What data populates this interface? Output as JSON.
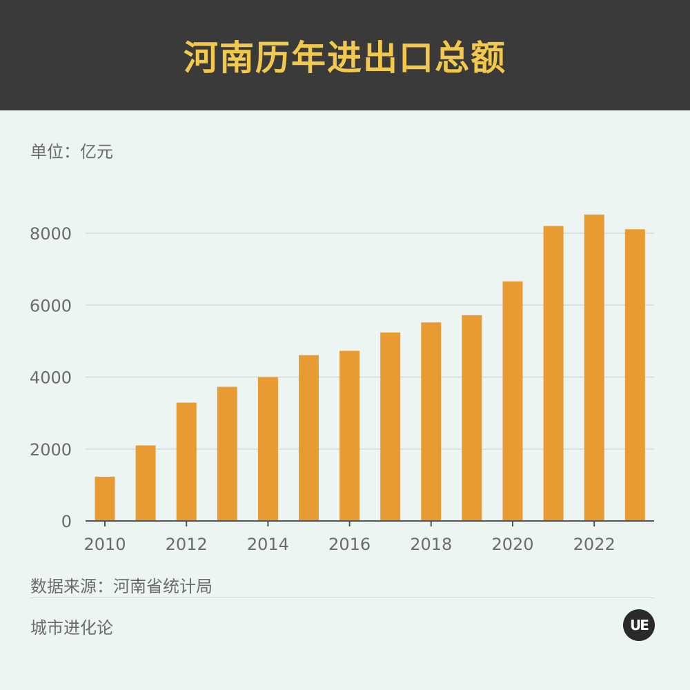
{
  "header": {
    "title": "河南历年进出口总额",
    "bg_color": "#3a3a3a",
    "title_color": "#f2c94c"
  },
  "unit_label": "单位：亿元",
  "source_label": "数据来源：河南省统计局",
  "brand_label": "城市进化论",
  "logo_text": "UE",
  "colors": {
    "bar": "#e89b33",
    "background": "#edf5f3",
    "grid": "#d4dcda",
    "axis": "#555555",
    "text": "#6b6b6b"
  },
  "chart_data": {
    "type": "bar",
    "title": "",
    "xlabel": "",
    "ylabel": "",
    "ylim": [
      0,
      9000
    ],
    "yticks": [
      0,
      2000,
      4000,
      6000,
      8000
    ],
    "x": [
      2010,
      2011,
      2012,
      2013,
      2014,
      2015,
      2016,
      2017,
      2018,
      2019,
      2020,
      2021,
      2022,
      2023
    ],
    "xtick_labels": [
      "2010",
      "2012",
      "2014",
      "2016",
      "2018",
      "2020",
      "2022"
    ],
    "values": [
      1230,
      2100,
      3290,
      3730,
      4000,
      4610,
      4730,
      5240,
      5520,
      5720,
      6660,
      8200,
      8520,
      8110
    ],
    "grid": true
  }
}
